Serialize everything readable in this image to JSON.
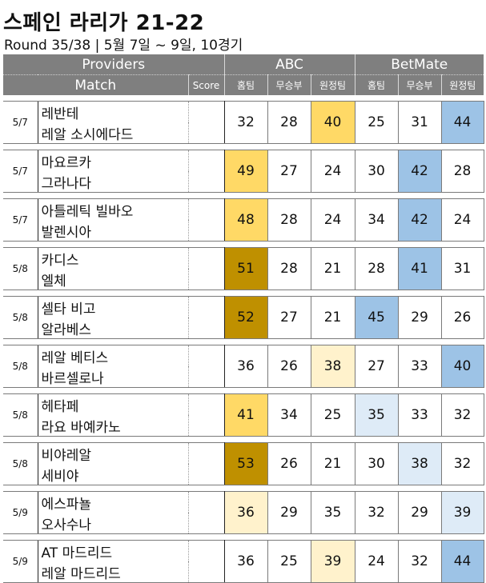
{
  "title": "스페인 라리가 21-22",
  "subtitle": "Round 35/38 | 5월 7일 ~ 9일, 10경기",
  "header": {
    "providers": "Providers",
    "match": "Match",
    "score": "Score",
    "abc": "ABC",
    "betmate": "BetMate",
    "cols": [
      "홈팀",
      "무승부",
      "원정팀",
      "홈팀",
      "무승부",
      "원정팀"
    ]
  },
  "colors": {
    "gold_dark": "#bf9000",
    "gold": "#ffd966",
    "gold_light": "#fff2cc",
    "blue": "#9dc3e6",
    "blue_light": "#deebf7",
    "header_gray": "#7f7f7f"
  },
  "matches": [
    {
      "date": "5/7",
      "home": "레반테",
      "away": "레알 소시에다드",
      "values": [
        "32",
        "28",
        "40",
        "25",
        "31",
        "44"
      ],
      "colors": [
        "",
        "",
        "#ffd966",
        "",
        "",
        "#9dc3e6"
      ]
    },
    {
      "date": "5/7",
      "home": "마요르카",
      "away": "그라나다",
      "values": [
        "49",
        "27",
        "24",
        "30",
        "42",
        "28"
      ],
      "colors": [
        "#ffd966",
        "",
        "",
        "",
        "#9dc3e6",
        ""
      ]
    },
    {
      "date": "5/7",
      "home": "아틀레틱 빌바오",
      "away": "발렌시아",
      "values": [
        "48",
        "28",
        "24",
        "34",
        "42",
        "24"
      ],
      "colors": [
        "#ffd966",
        "",
        "",
        "",
        "#9dc3e6",
        ""
      ]
    },
    {
      "date": "5/8",
      "home": "카디스",
      "away": "엘체",
      "values": [
        "51",
        "28",
        "21",
        "28",
        "41",
        "31"
      ],
      "colors": [
        "#bf9000",
        "",
        "",
        "",
        "#9dc3e6",
        ""
      ]
    },
    {
      "date": "5/8",
      "home": "셀타 비고",
      "away": "알라베스",
      "values": [
        "52",
        "27",
        "21",
        "45",
        "29",
        "26"
      ],
      "colors": [
        "#bf9000",
        "",
        "",
        "#9dc3e6",
        "",
        ""
      ]
    },
    {
      "date": "5/8",
      "home": "레알 베티스",
      "away": "바르셀로나",
      "values": [
        "36",
        "26",
        "38",
        "27",
        "33",
        "40"
      ],
      "colors": [
        "",
        "",
        "#fff2cc",
        "",
        "",
        "#9dc3e6"
      ]
    },
    {
      "date": "5/8",
      "home": "헤타페",
      "away": "라요 바예카노",
      "values": [
        "41",
        "34",
        "25",
        "35",
        "33",
        "32"
      ],
      "colors": [
        "#ffd966",
        "",
        "",
        "#deebf7",
        "",
        ""
      ]
    },
    {
      "date": "5/8",
      "home": "비야레알",
      "away": "세비야",
      "values": [
        "53",
        "26",
        "21",
        "30",
        "38",
        "32"
      ],
      "colors": [
        "#bf9000",
        "",
        "",
        "",
        "#deebf7",
        ""
      ]
    },
    {
      "date": "5/9",
      "home": "에스파뇰",
      "away": "오사수나",
      "values": [
        "36",
        "29",
        "35",
        "32",
        "29",
        "39"
      ],
      "colors": [
        "#fff2cc",
        "",
        "",
        "",
        "",
        "#deebf7"
      ]
    },
    {
      "date": "5/9",
      "home": "AT 마드리드",
      "away": "레알 마드리드",
      "values": [
        "36",
        "25",
        "39",
        "24",
        "32",
        "44"
      ],
      "colors": [
        "",
        "",
        "#fff2cc",
        "",
        "",
        "#9dc3e6"
      ]
    }
  ]
}
